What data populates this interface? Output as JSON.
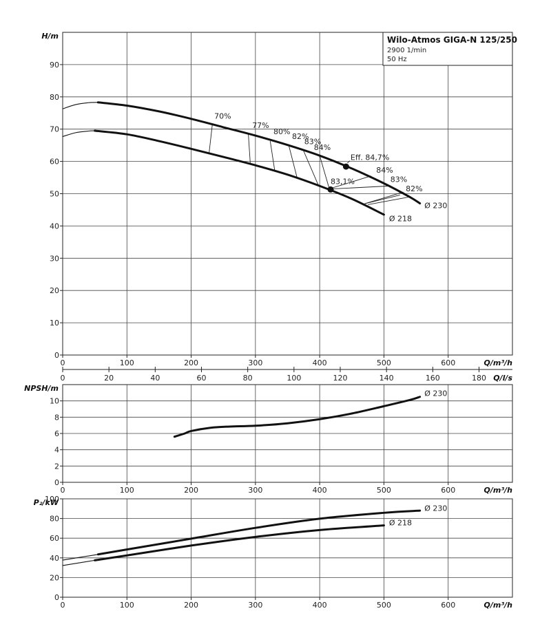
{
  "chart_data": [
    {
      "id": "head",
      "type": "line",
      "title": "Wilo-Atmos GIGA-N 125/250",
      "subtitle": [
        "2900 1/min",
        "50 Hz"
      ],
      "ylabel": "H/m",
      "xlabel": "Q/m³/h",
      "xlim": [
        0,
        700
      ],
      "ylim": [
        0,
        100
      ],
      "x_ticks": [
        0,
        100,
        200,
        300,
        400,
        500,
        600
      ],
      "y_ticks": [
        0,
        10,
        20,
        30,
        40,
        50,
        60,
        70,
        80,
        90
      ],
      "grid": true,
      "secondary_x": {
        "label": "Q/l/s",
        "ticks": [
          0,
          20,
          40,
          60,
          80,
          100,
          120,
          140,
          160,
          180
        ],
        "factor_m3h_per_ls": 3.6
      },
      "series": [
        {
          "name": "Ø 230",
          "role": "operating",
          "x": [
            55,
            100,
            150,
            200,
            250,
            300,
            350,
            400,
            450,
            500,
            540,
            556
          ],
          "y": [
            78.3,
            77.3,
            75.5,
            73.2,
            70.6,
            68.0,
            65.1,
            61.8,
            57.8,
            53.2,
            49.0,
            47.0
          ]
        },
        {
          "name": "Ø 218",
          "role": "operating",
          "x": [
            50,
            100,
            150,
            200,
            250,
            300,
            350,
            400,
            450,
            500
          ],
          "y": [
            69.5,
            68.4,
            66.3,
            63.9,
            61.4,
            58.8,
            55.9,
            52.4,
            48.4,
            43.5
          ]
        },
        {
          "role": "extension",
          "x": [
            0,
            20,
            40,
            55
          ],
          "y": [
            76.3,
            77.6,
            78.2,
            78.3
          ]
        },
        {
          "role": "extension",
          "x": [
            0,
            20,
            40,
            50
          ],
          "y": [
            67.7,
            68.9,
            69.4,
            69.5
          ]
        }
      ],
      "efficiency_lines": [
        {
          "label": "70%",
          "x": [
            228,
            233
          ],
          "y": [
            62.8,
            71.6
          ],
          "lx": 236,
          "ly": 73.2
        },
        {
          "label": "77%",
          "x": [
            292,
            289
          ],
          "y": [
            59.3,
            68.4
          ],
          "lx": 295,
          "ly": 70.4
        },
        {
          "label": "80%",
          "x": [
            330,
            323
          ],
          "y": [
            57.2,
            66.3
          ],
          "lx": 328,
          "ly": 68.4
        },
        {
          "label": "82%",
          "x": [
            365,
            352
          ],
          "y": [
            54.8,
            64.9
          ],
          "lx": 357,
          "ly": 67.0
        },
        {
          "label": "83%",
          "x": [
            398,
            374
          ],
          "y": [
            52.6,
            63.7
          ],
          "lx": 376,
          "ly": 65.3
        },
        {
          "label": "84%",
          "x": [
            415,
            400
          ],
          "y": [
            51.5,
            61.8
          ],
          "lx": 391,
          "ly": 63.5
        },
        {
          "label": "84%",
          "x": [
            415,
            480
          ],
          "y": [
            51.5,
            55.5
          ],
          "lx": 488,
          "ly": 56.5
        },
        {
          "label": "83%",
          "x": [
            412,
            510
          ],
          "y": [
            51.4,
            52.4
          ],
          "lx": 510,
          "ly": 53.6
        },
        {
          "label": "82%",
          "x": [
            470,
            530
          ],
          "y": [
            46.9,
            50.5
          ],
          "lx": 534,
          "ly": 50.7
        },
        {
          "x": [
            470,
            525
          ],
          "y": [
            46.9,
            49.6
          ]
        },
        {
          "x": [
            475,
            540
          ],
          "y": [
            46.6,
            49.0
          ]
        }
      ],
      "points": [
        {
          "label": "Eff. 84,7%",
          "x": 441,
          "y": 58.4,
          "lx": 448,
          "ly": 60.5,
          "leader": [
            [
              443,
              59.5
            ],
            [
              447,
              60.2
            ]
          ]
        },
        {
          "label": "83,1%",
          "x": 417,
          "y": 51.3,
          "lx": 417,
          "ly": 53.0
        }
      ],
      "curve_labels": [
        {
          "text": "Ø 230",
          "x": 563,
          "y": 45.5
        },
        {
          "text": "Ø 218",
          "x": 508,
          "y": 41.5
        }
      ]
    },
    {
      "id": "npsh",
      "type": "line",
      "ylabel": "NPSH/m",
      "xlabel": "Q/m³/h",
      "xlim": [
        0,
        700
      ],
      "ylim": [
        0,
        12
      ],
      "x_ticks": [
        0,
        100,
        200,
        300,
        400,
        500,
        600
      ],
      "y_ticks": [
        0,
        2,
        4,
        6,
        8,
        10
      ],
      "grid": true,
      "series": [
        {
          "name": "Ø 230",
          "x": [
            174,
            190,
            200,
            230,
            260,
            300,
            350,
            400,
            450,
            500,
            540,
            556
          ],
          "y": [
            5.6,
            6.0,
            6.3,
            6.7,
            6.85,
            6.95,
            7.25,
            7.75,
            8.45,
            9.35,
            10.1,
            10.5
          ]
        }
      ],
      "curve_labels": [
        {
          "text": "Ø 230",
          "x": 563,
          "y": 10.6
        }
      ]
    },
    {
      "id": "power",
      "type": "line",
      "ylabel": "P₂/kW",
      "xlabel": "Q/m³/h",
      "xlim": [
        0,
        700
      ],
      "ylim": [
        0,
        100
      ],
      "x_ticks": [
        0,
        100,
        200,
        300,
        400,
        500,
        600
      ],
      "y_ticks": [
        0,
        20,
        40,
        60,
        80,
        100
      ],
      "grid": true,
      "series": [
        {
          "name": "Ø 230",
          "role": "operating",
          "x": [
            55,
            100,
            200,
            300,
            400,
            500,
            556
          ],
          "y": [
            43.5,
            48.5,
            59.5,
            70.5,
            79.8,
            85.8,
            88.0
          ]
        },
        {
          "name": "Ø 218",
          "role": "operating",
          "x": [
            50,
            100,
            200,
            300,
            400,
            500
          ],
          "y": [
            37.5,
            42.5,
            52.5,
            61.3,
            68.3,
            73.0
          ]
        },
        {
          "role": "extension",
          "x": [
            0,
            55
          ],
          "y": [
            37.7,
            43.5
          ]
        },
        {
          "role": "extension",
          "x": [
            0,
            50
          ],
          "y": [
            32.2,
            37.5
          ]
        }
      ],
      "curve_labels": [
        {
          "text": "Ø 230",
          "x": 563,
          "y": 87.8
        },
        {
          "text": "Ø 218",
          "x": 508,
          "y": 73.0
        }
      ]
    }
  ]
}
